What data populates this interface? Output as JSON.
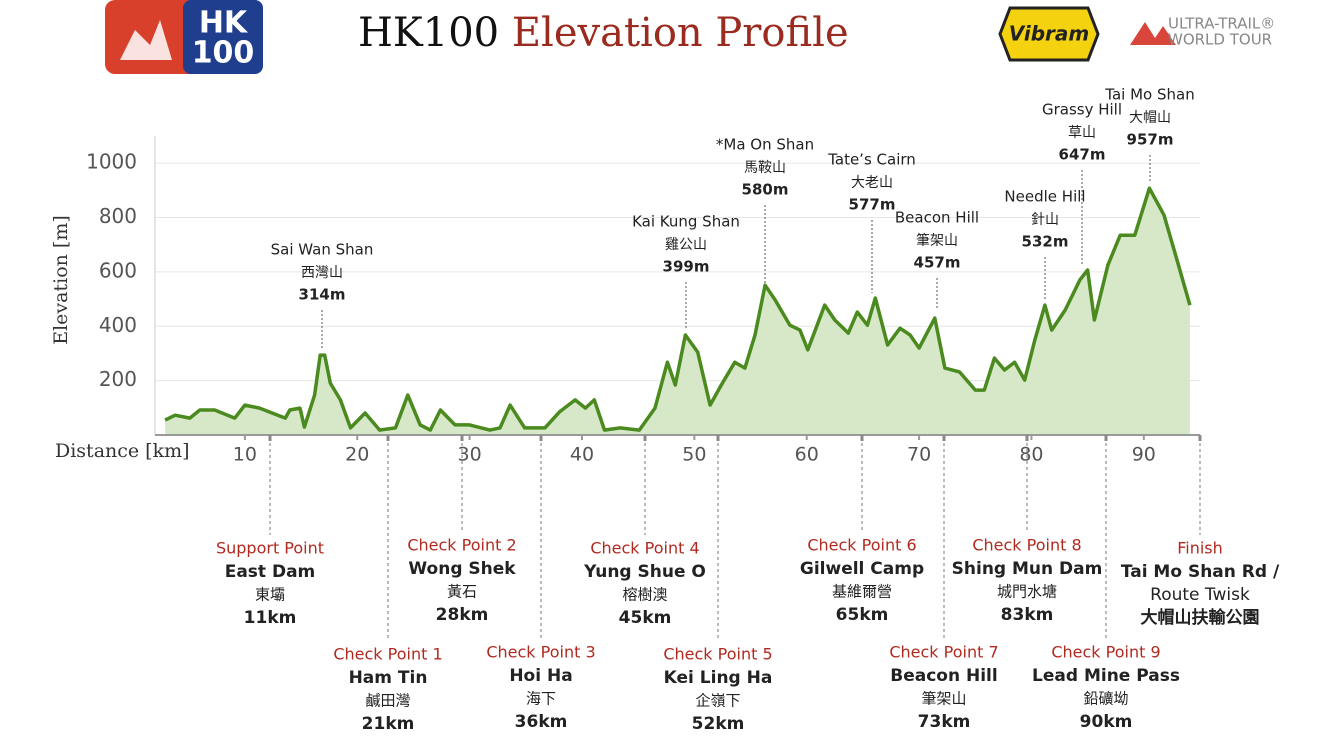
{
  "header": {
    "logo_top": "HK",
    "logo_bottom": "100",
    "title_part1": "HK100",
    "title_part2": "Elevation Profile",
    "sponsor": "Vibram",
    "tour_line1": "ULTRA-TRAIL®",
    "tour_line2": "WORLD TOUR"
  },
  "chart_data": {
    "type": "area",
    "color": "#4a8a1e",
    "fill": "#d7e8c9",
    "grid": true,
    "y_label": "Elevation [m]",
    "x_label": "Distance [km]",
    "xlim": [
      2,
      95
    ],
    "ylim": [
      0,
      1100
    ],
    "xticks": [
      10,
      20,
      30,
      40,
      50,
      60,
      70,
      80,
      90
    ],
    "yticks": [
      200,
      400,
      600,
      800,
      1000
    ],
    "x": [
      2.9,
      3.8,
      5.1,
      6.0,
      7.3,
      9.1,
      10.0,
      11.3,
      13.6,
      14.0,
      14.9,
      15.3,
      16.2,
      16.7,
      17.1,
      17.6,
      18.5,
      19.4,
      20.7,
      22.0,
      23.4,
      24.5,
      25.6,
      26.5,
      27.4,
      28.7,
      30.0,
      31.8,
      32.7,
      33.6,
      34.9,
      36.7,
      38.0,
      39.4,
      40.3,
      41.1,
      42.0,
      43.4,
      45.1,
      46.5,
      47.6,
      48.3,
      49.2,
      50.3,
      51.4,
      52.4,
      53.6,
      54.5,
      55.4,
      56.3,
      57.2,
      58.5,
      59.4,
      60.1,
      61.6,
      62.5,
      63.7,
      64.5,
      65.4,
      66.1,
      67.2,
      68.3,
      69.2,
      70.0,
      71.4,
      72.3,
      73.6,
      75.0,
      75.8,
      76.7,
      77.6,
      78.5,
      79.4,
      80.3,
      81.2,
      81.8,
      83.0,
      84.3,
      85.0,
      85.6,
      86.8,
      87.9,
      89.2,
      90.5,
      91.8,
      92.7,
      94.1
    ],
    "values": [
      55,
      73,
      62,
      92,
      92,
      62,
      110,
      99,
      62,
      92,
      99,
      29,
      147,
      294,
      294,
      191,
      129,
      26,
      81,
      18,
      26,
      147,
      37,
      18,
      92,
      37,
      37,
      18,
      26,
      110,
      26,
      26,
      85,
      129,
      99,
      129,
      18,
      26,
      18,
      99,
      268,
      184,
      368,
      305,
      110,
      184,
      268,
      246,
      368,
      551,
      496,
      404,
      386,
      313,
      478,
      423,
      375,
      452,
      404,
      504,
      331,
      393,
      368,
      320,
      430,
      246,
      232,
      165,
      165,
      283,
      239,
      268,
      202,
      349,
      478,
      386,
      460,
      570,
      607,
      423,
      625,
      735,
      735,
      908,
      809,
      680,
      478
    ],
    "peaks": [
      {
        "name": "Sai Wan Shan",
        "local": "西灣山",
        "height": "314m"
      },
      {
        "name": "Kai Kung Shan",
        "local": "雞公山",
        "height": "399m"
      },
      {
        "name": "*Ma On Shan",
        "local": "馬鞍山",
        "height": "580m"
      },
      {
        "name": "Tate’s Cairn",
        "local": "大老山",
        "height": "577m"
      },
      {
        "name": "Beacon Hill",
        "local": "筆架山",
        "height": "457m"
      },
      {
        "name": "Needle Hill",
        "local": "針山",
        "height": "532m"
      },
      {
        "name": "Grassy Hill",
        "local": "草山",
        "height": "647m"
      },
      {
        "name": "Tai Mo Shan",
        "local": "大帽山",
        "height": "957m"
      }
    ],
    "checkpoints": [
      {
        "label": "Support Point",
        "lines": [
          "East Dam",
          "東壩",
          "11km"
        ]
      },
      {
        "label": "Check Point 1",
        "lines": [
          "Ham Tin",
          "鹹田灣",
          "21km"
        ]
      },
      {
        "label": "Check Point 2",
        "lines": [
          "Wong Shek",
          "黃石",
          "28km"
        ]
      },
      {
        "label": "Check Point 3",
        "lines": [
          "Hoi Ha",
          "海下",
          "36km"
        ]
      },
      {
        "label": "Check Point 4",
        "lines": [
          "Yung Shue O",
          "榕樹澳",
          "45km"
        ]
      },
      {
        "label": "Check Point 5",
        "lines": [
          "Kei Ling Ha",
          "企嶺下",
          "52km"
        ]
      },
      {
        "label": "Check Point 6",
        "lines": [
          "Gilwell Camp",
          "基維爾營",
          "65km"
        ]
      },
      {
        "label": "Check Point 7",
        "lines": [
          "Beacon Hill",
          "筆架山",
          "73km"
        ]
      },
      {
        "label": "Check Point 8",
        "lines": [
          "Shing Mun Dam",
          "城門水塘",
          "83km"
        ]
      },
      {
        "label": "Check Point 9",
        "lines": [
          "Lead Mine Pass",
          "鉛礦坳",
          "90km"
        ]
      },
      {
        "label": "Finish",
        "lines": [
          "Tai Mo Shan Rd /",
          "Route Twisk",
          "大帽山扶輸公園"
        ]
      }
    ]
  }
}
